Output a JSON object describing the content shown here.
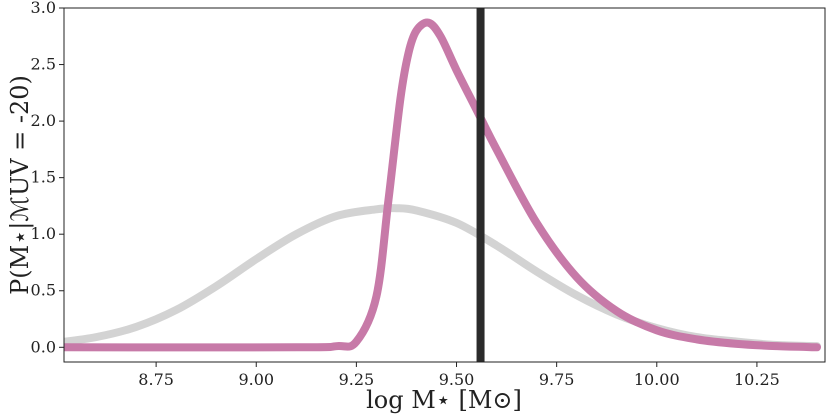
{
  "chart_data": {
    "type": "line",
    "xlabel": "log M⋆ [M⊙]",
    "ylabel": "P(M⋆|ℳUV = -20)",
    "xlim": [
      8.52,
      10.42
    ],
    "ylim": [
      -0.13,
      3.0
    ],
    "xticks": [
      "8.75",
      "9.00",
      "9.25",
      "9.50",
      "9.75",
      "10.00",
      "10.25"
    ],
    "yticks": [
      "0.0",
      "0.5",
      "1.0",
      "1.5",
      "2.0",
      "2.5",
      "3.0"
    ],
    "grid": false,
    "vline_x": 9.56,
    "series": [
      {
        "color": "#d3d3d3",
        "x": [
          8.5,
          8.6,
          8.7,
          8.8,
          8.9,
          9.0,
          9.1,
          9.2,
          9.3,
          9.35,
          9.4,
          9.5,
          9.6,
          9.7,
          9.8,
          9.9,
          10.0,
          10.1,
          10.2,
          10.3,
          10.4
        ],
        "y": [
          0.04,
          0.09,
          0.18,
          0.33,
          0.54,
          0.78,
          1.0,
          1.16,
          1.22,
          1.23,
          1.21,
          1.1,
          0.9,
          0.67,
          0.46,
          0.29,
          0.17,
          0.09,
          0.05,
          0.02,
          0.01
        ]
      },
      {
        "color": "#c77aa8",
        "x": [
          8.5,
          9.1,
          9.2,
          9.25,
          9.3,
          9.33,
          9.36,
          9.38,
          9.4,
          9.43,
          9.46,
          9.5,
          9.55,
          9.6,
          9.7,
          9.8,
          9.9,
          10.0,
          10.1,
          10.2,
          10.3,
          10.4
        ],
        "y": [
          0.0,
          0.0,
          0.01,
          0.05,
          0.45,
          1.3,
          2.2,
          2.6,
          2.8,
          2.87,
          2.75,
          2.45,
          2.1,
          1.75,
          1.1,
          0.62,
          0.32,
          0.15,
          0.07,
          0.03,
          0.01,
          0.0
        ]
      }
    ]
  }
}
